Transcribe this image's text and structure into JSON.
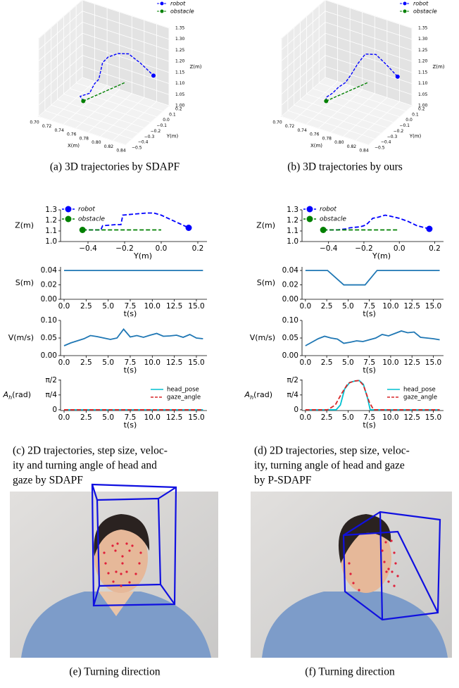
{
  "chart_data": [
    {
      "type": "line3d",
      "xlabel": "X(m)",
      "ylabel": "Y(m)",
      "zlabel": "Z(m)",
      "xlim": [
        0.7,
        0.84
      ],
      "ylim": [
        -0.5,
        0.2
      ],
      "zlim": [
        1.0,
        1.35
      ],
      "xticks": [
        {
          "value": 0.7,
          "label": "0.70"
        },
        0.72,
        0.74,
        0.76,
        0.78,
        {
          "value": 0.8,
          "label": "0.80"
        },
        0.82,
        0.84
      ],
      "yticks": [
        {
          "value": -0.5,
          "label": "−0.5"
        },
        {
          "value": -0.4,
          "label": "−0.4"
        },
        {
          "value": -0.3,
          "label": "−0.3"
        },
        {
          "value": -0.2,
          "label": "−0.2"
        },
        {
          "value": -0.1,
          "label": "−0.1"
        },
        {
          "value": 0.0,
          "label": "0.0"
        },
        0.1,
        0.2
      ],
      "zticks": [
        {
          "value": 1.0,
          "label": "1.00"
        },
        1.05,
        {
          "value": 1.1,
          "label": "1.10"
        },
        1.15,
        {
          "value": 1.2,
          "label": "1.20"
        },
        1.25,
        {
          "value": 1.3,
          "label": "1.30"
        },
        1.35
      ],
      "legend": "upper right",
      "series": [
        {
          "name": "robot",
          "color": "#0000ff",
          "marker_at": "end",
          "x": [
            0.765,
            0.755,
            0.765,
            0.77,
            0.772,
            0.775,
            0.78,
            0.79,
            0.8,
            0.81,
            0.82
          ],
          "y": [
            -0.43,
            -0.38,
            -0.33,
            -0.3,
            -0.25,
            -0.22,
            -0.18,
            -0.12,
            -0.05,
            0.05,
            0.15
          ],
          "z": [
            1.11,
            1.11,
            1.12,
            1.16,
            1.17,
            1.24,
            1.26,
            1.27,
            1.26,
            1.2,
            1.13
          ]
        },
        {
          "name": "obstacle",
          "color": "#008000",
          "marker_at": "start",
          "x": [
            0.765,
            0.79
          ],
          "y": [
            -0.43,
            0.0
          ],
          "z": [
            1.11,
            1.11
          ]
        }
      ]
    },
    {
      "type": "line3d",
      "xlabel": "X(m)",
      "ylabel": "Y(m)",
      "zlabel": "Z(m)",
      "xlim": [
        0.7,
        0.84
      ],
      "ylim": [
        -0.5,
        0.2
      ],
      "zlim": [
        1.0,
        1.35
      ],
      "xticks": [
        {
          "value": 0.7,
          "label": "0.70"
        },
        0.72,
        0.74,
        0.76,
        0.78,
        {
          "value": 0.8,
          "label": "0.80"
        },
        0.82,
        0.84
      ],
      "yticks": [
        {
          "value": -0.5,
          "label": "−0.5"
        },
        {
          "value": -0.4,
          "label": "−0.4"
        },
        {
          "value": -0.3,
          "label": "−0.3"
        },
        {
          "value": -0.2,
          "label": "−0.2"
        },
        {
          "value": -0.1,
          "label": "−0.1"
        },
        {
          "value": 0.0,
          "label": "0.0"
        },
        0.1,
        0.2
      ],
      "zticks": [
        {
          "value": 1.0,
          "label": "1.00"
        },
        1.05,
        {
          "value": 1.1,
          "label": "1.10"
        },
        1.15,
        {
          "value": 1.2,
          "label": "1.20"
        },
        1.25,
        {
          "value": 1.3,
          "label": "1.30"
        },
        1.35
      ],
      "legend": "upper right",
      "series": [
        {
          "name": "robot",
          "color": "#0000ff",
          "marker_at": "end",
          "x": [
            0.765,
            0.76,
            0.765,
            0.77,
            0.775,
            0.78,
            0.785,
            0.79,
            0.8,
            0.81,
            0.82
          ],
          "y": [
            -0.43,
            -0.38,
            -0.33,
            -0.28,
            -0.22,
            -0.18,
            -0.12,
            -0.05,
            0.02,
            0.1,
            0.17
          ],
          "z": [
            1.11,
            1.11,
            1.12,
            1.14,
            1.15,
            1.18,
            1.22,
            1.25,
            1.24,
            1.18,
            1.12
          ]
        },
        {
          "name": "obstacle",
          "color": "#008000",
          "marker_at": "start",
          "x": [
            0.765,
            0.79
          ],
          "y": [
            -0.43,
            0.0
          ],
          "z": [
            1.11,
            1.11
          ]
        }
      ]
    },
    {
      "type": "line",
      "xlabel": "Y(m)",
      "ylabel": "Z(m)",
      "xlim": [
        -0.55,
        0.25
      ],
      "ylim": [
        1.0,
        1.3
      ],
      "xticks": [
        {
          "value": -0.4,
          "label": "−0.4"
        },
        {
          "value": -0.2,
          "label": "−0.2"
        },
        {
          "value": 0.0,
          "label": "0.0"
        },
        0.2
      ],
      "yticks": [
        {
          "value": 1.0,
          "label": "1.0"
        },
        1.1,
        1.2,
        1.3
      ],
      "legend": "upper left",
      "series": [
        {
          "name": "robot",
          "color": "#0000ff",
          "dash": "dashed",
          "marker_at": "end",
          "x": [
            -0.43,
            -0.36,
            -0.33,
            -0.32,
            -0.25,
            -0.22,
            -0.21,
            -0.15,
            -0.08,
            -0.04,
            0.0,
            0.05,
            0.1,
            0.15
          ],
          "values": [
            1.11,
            1.11,
            1.11,
            1.15,
            1.16,
            1.16,
            1.25,
            1.26,
            1.27,
            1.27,
            1.25,
            1.21,
            1.17,
            1.13
          ]
        },
        {
          "name": "obstacle",
          "color": "#008000",
          "dash": "dashed",
          "marker_at": "start",
          "x": [
            -0.43,
            0.0
          ],
          "values": [
            1.11,
            1.11
          ]
        }
      ]
    },
    {
      "type": "line",
      "xlabel": "t(s)",
      "ylabel": "S(m)",
      "xlim": [
        -0.4,
        16.2
      ],
      "ylim": [
        0,
        0.045
      ],
      "xticks": [
        {
          "value": 0,
          "label": "0.0"
        },
        2.5,
        {
          "value": 5,
          "label": "5.0"
        },
        7.5,
        {
          "value": 10,
          "label": "10.0"
        },
        12.5,
        {
          "value": 15,
          "label": "15.0"
        }
      ],
      "yticks": [
        {
          "value": 0,
          "label": "0.00"
        },
        0.02,
        0.04
      ],
      "series": [
        {
          "color": "#1f77b4",
          "x": [
            0,
            15.75
          ],
          "values": [
            0.04,
            0.04
          ]
        }
      ]
    },
    {
      "type": "line",
      "xlabel": "t(s)",
      "ylabel": "V(m/s)",
      "xlim": [
        -0.4,
        16.2
      ],
      "ylim": [
        0,
        0.1
      ],
      "xticks": [
        {
          "value": 0,
          "label": "0.0"
        },
        2.5,
        {
          "value": 5,
          "label": "5.0"
        },
        7.5,
        {
          "value": 10,
          "label": "10.0"
        },
        12.5,
        {
          "value": 15,
          "label": "15.0"
        }
      ],
      "yticks": [
        {
          "value": 0,
          "label": "0.00"
        },
        0.05,
        {
          "value": 0.1,
          "label": "0.10"
        }
      ],
      "series": [
        {
          "color": "#1f77b4",
          "x": [
            0,
            0.75,
            1.5,
            2.25,
            3,
            3.75,
            4.5,
            5.25,
            6,
            6.75,
            7.5,
            8.25,
            9,
            9.75,
            10.5,
            11.25,
            12,
            12.75,
            13.5,
            14.25,
            15,
            15.75
          ],
          "values": [
            0.028,
            0.036,
            0.042,
            0.048,
            0.057,
            0.054,
            0.05,
            0.046,
            0.05,
            0.075,
            0.053,
            0.057,
            0.052,
            0.058,
            0.063,
            0.055,
            0.056,
            0.058,
            0.052,
            0.06,
            0.05,
            0.048
          ]
        }
      ]
    },
    {
      "type": "line",
      "xlabel": "t(s)",
      "ylabel": [
        "A",
        "h",
        "(rad)"
      ],
      "xlim": [
        -0.4,
        16.2
      ],
      "ylim": [
        -0.04,
        1.6
      ],
      "xticks": [
        {
          "value": 0,
          "label": "0.0"
        },
        2.5,
        {
          "value": 5,
          "label": "5.0"
        },
        7.5,
        {
          "value": 10,
          "label": "10.0"
        },
        12.5,
        {
          "value": 15,
          "label": "15.0"
        }
      ],
      "yticks": [
        0,
        {
          "value": 0.7854,
          "label": "π/4"
        },
        {
          "value": 1.5708,
          "label": "π/2"
        }
      ],
      "legend": "lower right",
      "series": [
        {
          "name": "head_pose",
          "color": "#00c0d0",
          "x": [
            0,
            15.75
          ],
          "values": [
            0,
            0
          ]
        },
        {
          "name": "gaze_angle",
          "color": "#d62728",
          "dash": "dashed",
          "x": [
            0,
            15.75
          ],
          "values": [
            0,
            0
          ]
        }
      ]
    },
    {
      "type": "line",
      "xlabel": "Y(m)",
      "ylabel": "Z(m)",
      "xlim": [
        -0.55,
        0.25
      ],
      "ylim": [
        1.0,
        1.3
      ],
      "xticks": [
        {
          "value": -0.4,
          "label": "−0.4"
        },
        {
          "value": -0.2,
          "label": "−0.2"
        },
        {
          "value": 0.0,
          "label": "0.0"
        },
        0.2
      ],
      "yticks": [
        {
          "value": 1.0,
          "label": "1.0"
        },
        1.1,
        1.2,
        1.3
      ],
      "legend": "upper left",
      "series": [
        {
          "name": "robot",
          "color": "#0000ff",
          "dash": "dashed",
          "marker_at": "end",
          "x": [
            -0.43,
            -0.35,
            -0.3,
            -0.28,
            -0.22,
            -0.2,
            -0.18,
            -0.15,
            -0.12,
            -0.08,
            -0.05,
            0.0,
            0.05,
            0.1,
            0.17
          ],
          "values": [
            1.11,
            1.11,
            1.12,
            1.13,
            1.14,
            1.15,
            1.17,
            1.22,
            1.23,
            1.25,
            1.24,
            1.22,
            1.19,
            1.15,
            1.12
          ]
        },
        {
          "name": "obstacle",
          "color": "#008000",
          "dash": "dashed",
          "marker_at": "start",
          "x": [
            -0.43,
            0.0
          ],
          "values": [
            1.11,
            1.11
          ]
        }
      ]
    },
    {
      "type": "line",
      "xlabel": "t(s)",
      "ylabel": "S(m)",
      "xlim": [
        -0.4,
        16.2
      ],
      "ylim": [
        0,
        0.045
      ],
      "xticks": [
        {
          "value": 0,
          "label": "0.0"
        },
        2.5,
        {
          "value": 5,
          "label": "5.0"
        },
        7.5,
        {
          "value": 10,
          "label": "10.0"
        },
        12.5,
        {
          "value": 15,
          "label": "15.0"
        }
      ],
      "yticks": [
        {
          "value": 0,
          "label": "0.00"
        },
        0.02,
        0.04
      ],
      "series": [
        {
          "color": "#1f77b4",
          "x": [
            0,
            2.6,
            4.5,
            7.0,
            8.4,
            15.75
          ],
          "values": [
            0.04,
            0.04,
            0.02,
            0.02,
            0.04,
            0.04
          ]
        }
      ]
    },
    {
      "type": "line",
      "xlabel": "t(s)",
      "ylabel": "V(m/s)",
      "xlim": [
        -0.4,
        16.2
      ],
      "ylim": [
        0,
        0.1
      ],
      "xticks": [
        {
          "value": 0,
          "label": "0.0"
        },
        2.5,
        {
          "value": 5,
          "label": "5.0"
        },
        7.5,
        {
          "value": 10,
          "label": "10.0"
        },
        12.5,
        {
          "value": 15,
          "label": "15.0"
        }
      ],
      "yticks": [
        {
          "value": 0,
          "label": "0.00"
        },
        0.05,
        {
          "value": 0.1,
          "label": "0.10"
        }
      ],
      "series": [
        {
          "color": "#1f77b4",
          "x": [
            0,
            0.75,
            1.5,
            2.25,
            3,
            3.75,
            4.5,
            5.25,
            6,
            6.75,
            7.5,
            8.25,
            9,
            9.75,
            10.5,
            11.25,
            12,
            12.75,
            13.5,
            14.25,
            15,
            15.75
          ],
          "values": [
            0.028,
            0.038,
            0.048,
            0.055,
            0.05,
            0.047,
            0.035,
            0.038,
            0.042,
            0.04,
            0.045,
            0.05,
            0.06,
            0.056,
            0.063,
            0.07,
            0.065,
            0.067,
            0.052,
            0.05,
            0.048,
            0.045
          ]
        }
      ]
    },
    {
      "type": "line",
      "xlabel": "t(s)",
      "ylabel": [
        "A",
        "h",
        "(rad)"
      ],
      "xlim": [
        -0.4,
        16.2
      ],
      "ylim": [
        -0.04,
        1.6
      ],
      "xticks": [
        {
          "value": 0,
          "label": "0.0"
        },
        2.5,
        {
          "value": 5,
          "label": "5.0"
        },
        7.5,
        {
          "value": 10,
          "label": "10.0"
        },
        12.5,
        {
          "value": 15,
          "label": "15.0"
        }
      ],
      "yticks": [
        0,
        {
          "value": 0.7854,
          "label": "π/4"
        },
        {
          "value": 1.5708,
          "label": "π/2"
        }
      ],
      "legend": "lower right",
      "series": [
        {
          "name": "head_pose",
          "color": "#00c0d0",
          "x": [
            0,
            3.6,
            4.1,
            4.6,
            5.2,
            5.8,
            6.3,
            6.8,
            7.3,
            7.6,
            15.75
          ],
          "values": [
            0,
            0,
            0.25,
            1.1,
            1.45,
            1.52,
            1.55,
            1.35,
            0.6,
            0,
            0
          ]
        },
        {
          "name": "gaze_angle",
          "color": "#d62728",
          "dash": "dashed",
          "x": [
            0,
            2.6,
            3.5,
            4.3,
            5.0,
            5.7,
            6.3,
            6.8,
            7.5,
            8.0,
            15.75
          ],
          "values": [
            0,
            0,
            0.25,
            0.9,
            1.4,
            1.52,
            1.55,
            1.3,
            0.4,
            0,
            0
          ]
        }
      ]
    }
  ],
  "captions": [
    [
      "(a) 3D trajectories by SDAPF"
    ],
    [
      "(b) 3D trajectories by ours"
    ],
    [
      "(c) 2D trajectories, step size, veloc-",
      "ity and turning angle of head and",
      "gaze by SDAPF"
    ],
    [
      "(d) 2D trajectories, step size, veloc-",
      "ity, turning angle of head and gaze",
      "by P-SDAPF"
    ],
    [
      "(e) Turning direction"
    ],
    [
      "(f) Turning direction"
    ]
  ]
}
